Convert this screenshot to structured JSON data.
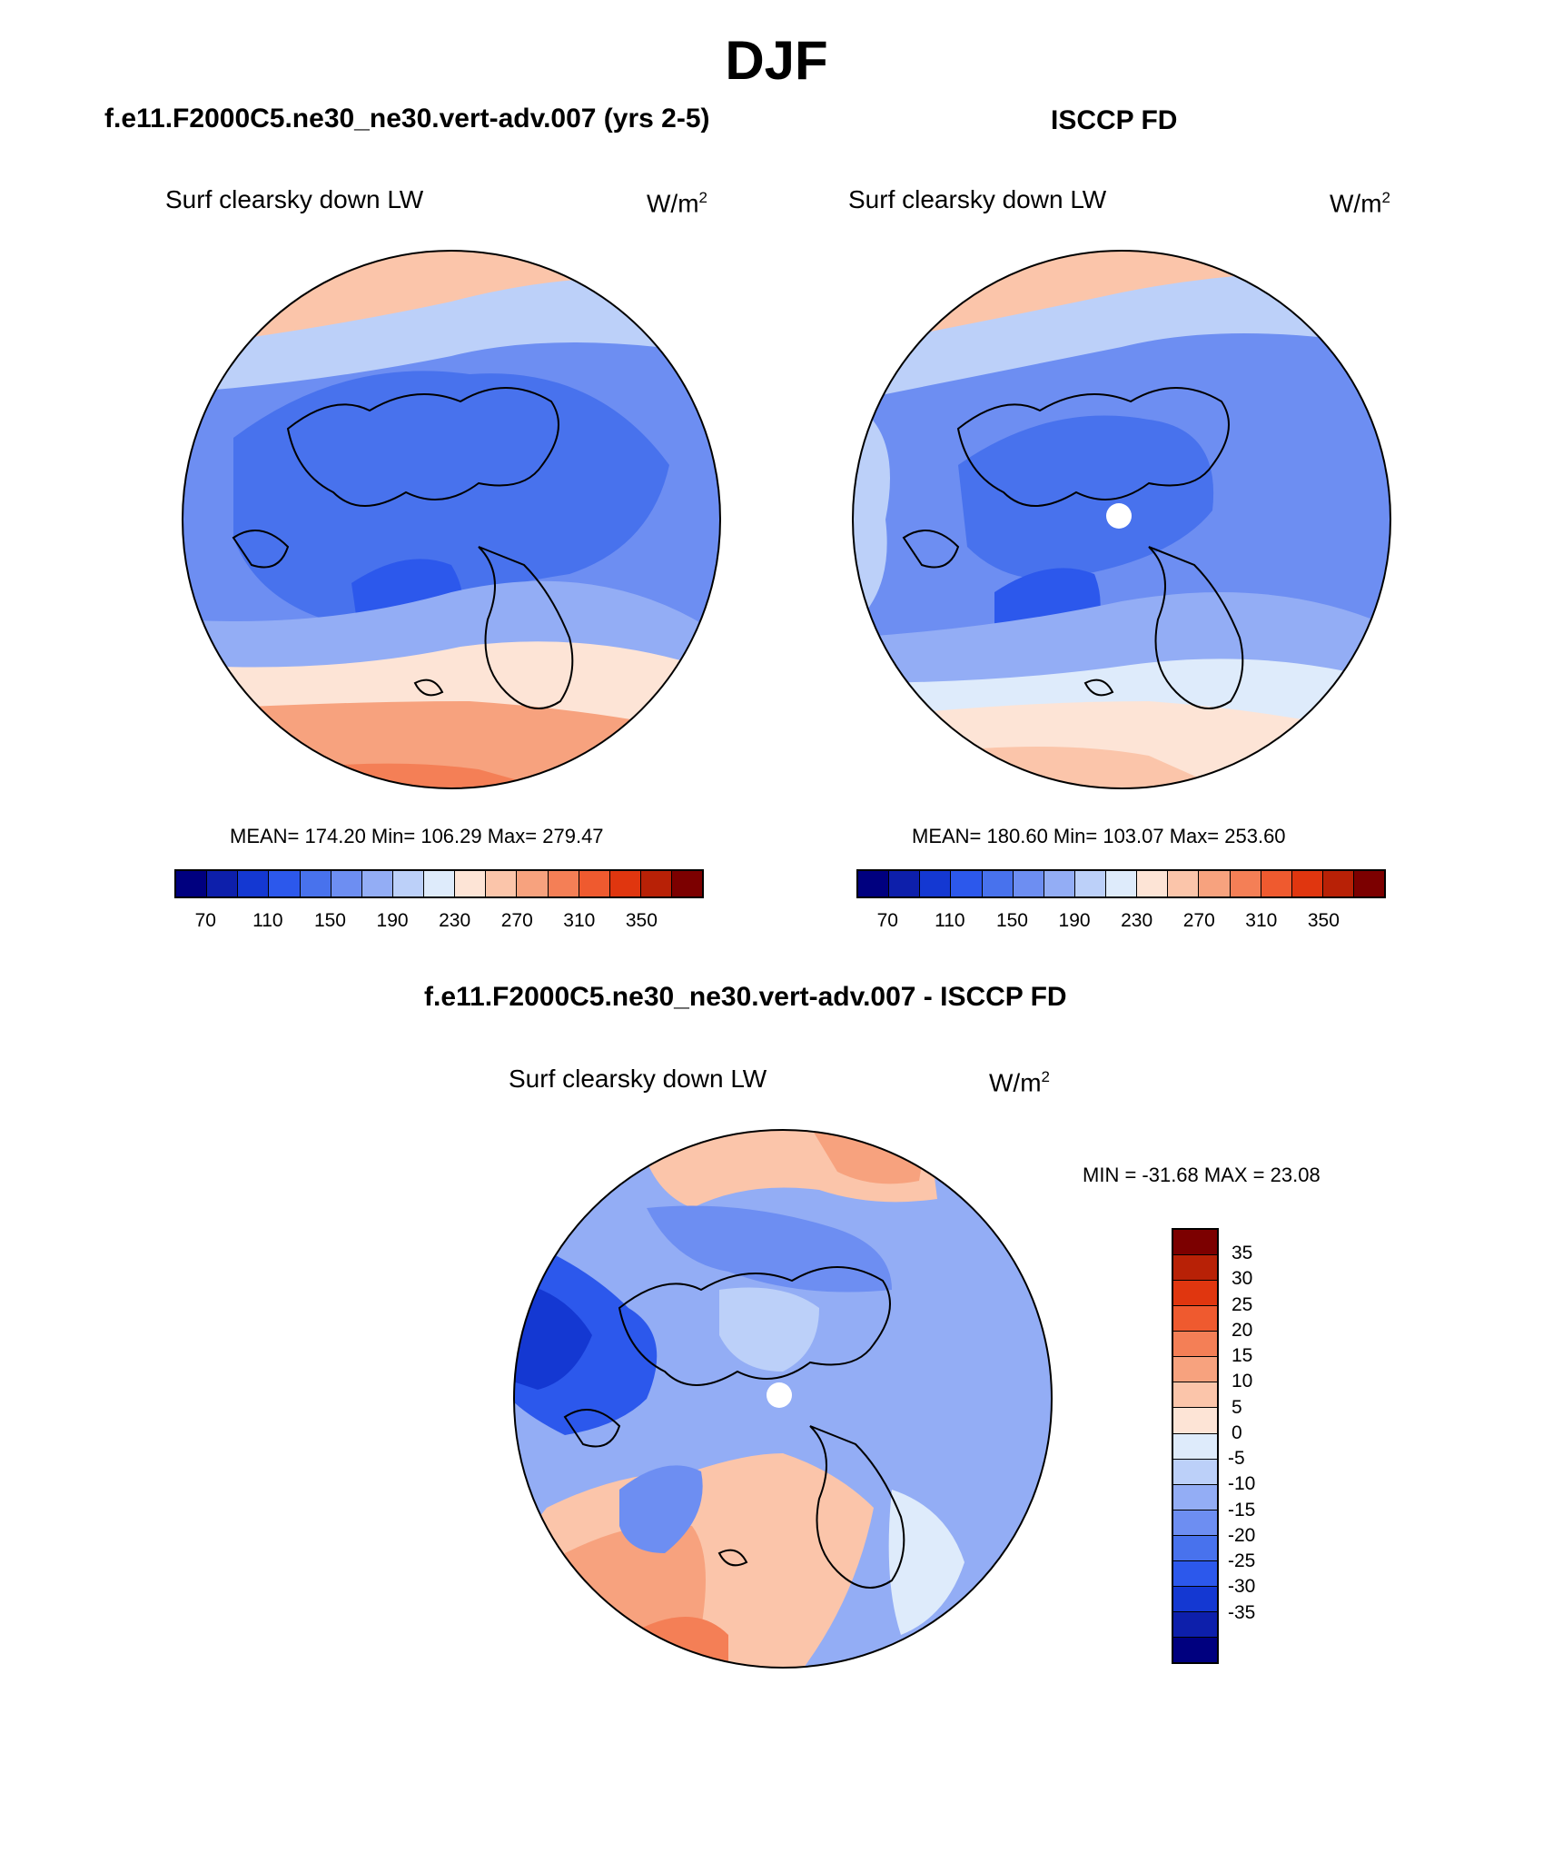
{
  "page_title": "DJF",
  "panels": {
    "model": {
      "title": "f.e11.F2000C5.ne30_ne30.vert-adv.007 (yrs 2-5)",
      "variable": "Surf clearsky down LW",
      "units_base": "W/m",
      "units_exp": "2",
      "stats": "MEAN= 174.20  Min= 106.29  Max= 279.47"
    },
    "obs": {
      "title": "ISCCP FD",
      "variable": "Surf clearsky down LW",
      "units_base": "W/m",
      "units_exp": "2",
      "stats": "MEAN= 180.60  Min= 103.07  Max= 253.60"
    },
    "diff": {
      "title": "f.e11.F2000C5.ne30_ne30.vert-adv.007 - ISCCP FD",
      "variable": "Surf clearsky down LW",
      "units_base": "W/m",
      "units_exp": "2",
      "stats": "MIN = -31.68 MAX =  23.08"
    }
  },
  "colorbar_abs": {
    "colors": [
      "#00007f",
      "#0d1fab",
      "#1438d2",
      "#2c58ec",
      "#4872ed",
      "#6d8ef2",
      "#93adf5",
      "#bcd0f9",
      "#deebfb",
      "#fde4d6",
      "#fbc5aa",
      "#f7a27e",
      "#f47f56",
      "#ef5a2f",
      "#e0360f",
      "#b82106",
      "#7c0000"
    ],
    "tick_labels": [
      "70",
      "110",
      "150",
      "190",
      "230",
      "270",
      "310",
      "350"
    ]
  },
  "colorbar_diff": {
    "colors": [
      "#7c0000",
      "#b82106",
      "#e0360f",
      "#ef5a2f",
      "#f47f56",
      "#f7a27e",
      "#fbc5aa",
      "#fde4d6",
      "#deebfb",
      "#bcd0f9",
      "#93adf5",
      "#6d8ef2",
      "#4872ed",
      "#2c58ec",
      "#1438d2",
      "#0d1fab",
      "#00007f"
    ],
    "tick_labels": [
      "35",
      "30",
      "25",
      "20",
      "15",
      "10",
      "5",
      "0",
      "-5",
      "-10",
      "-15",
      "-20",
      "-25",
      "-30",
      "-35"
    ]
  }
}
